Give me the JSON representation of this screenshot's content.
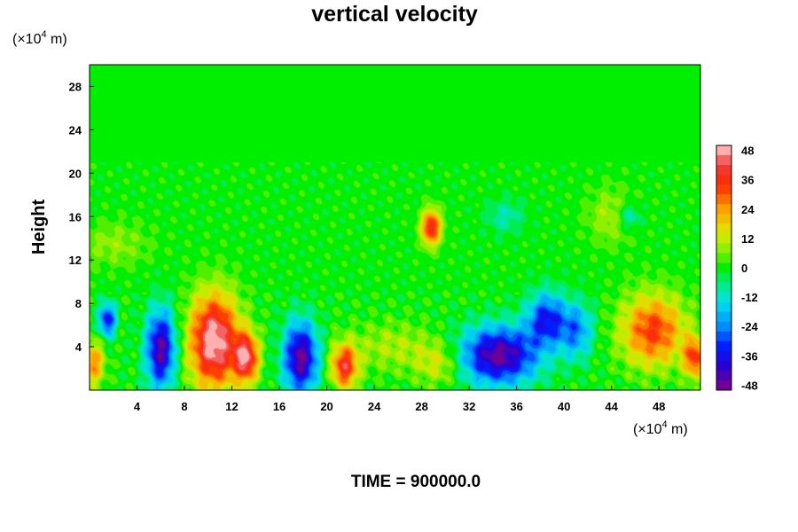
{
  "chart_data": {
    "type": "heatmap",
    "title": "vertical velocity",
    "ylabel": "Height",
    "x_unit_prefix": "(×10",
    "x_unit_exp": "4",
    "x_unit_suffix": " m)",
    "y_unit_prefix": "(×10",
    "y_unit_exp": "4",
    "y_unit_suffix": " m)",
    "xlim": [
      0,
      51.5
    ],
    "ylim": [
      0,
      30
    ],
    "x_ticks": [
      4,
      8,
      12,
      16,
      20,
      24,
      28,
      32,
      36,
      40,
      44,
      48
    ],
    "y_ticks": [
      4,
      8,
      12,
      16,
      20,
      24,
      28
    ],
    "colorbar": {
      "min": -48,
      "max": 48,
      "step": 4,
      "tick_labels": [
        48,
        36,
        24,
        12,
        0,
        -12,
        -24,
        -36,
        -48
      ]
    },
    "features": [
      {
        "x": 10.5,
        "y": 4.5,
        "value": 52,
        "rx": 2.0,
        "ry": 4.2
      },
      {
        "x": 13.2,
        "y": 3.0,
        "value": 44,
        "rx": 1.0,
        "ry": 2.2
      },
      {
        "x": 21.5,
        "y": 2.2,
        "value": 38,
        "rx": 1.1,
        "ry": 2.0
      },
      {
        "x": 47.5,
        "y": 5.5,
        "value": 34,
        "rx": 2.6,
        "ry": 3.2
      },
      {
        "x": 51.0,
        "y": 3.0,
        "value": 34,
        "rx": 0.9,
        "ry": 1.8
      },
      {
        "x": 0.3,
        "y": 2.5,
        "value": 26,
        "rx": 0.9,
        "ry": 2.0
      },
      {
        "x": 28.8,
        "y": 15.0,
        "value": 40,
        "rx": 0.8,
        "ry": 1.6
      },
      {
        "x": 6.0,
        "y": 3.8,
        "value": -46,
        "rx": 1.2,
        "ry": 3.5
      },
      {
        "x": 1.5,
        "y": 6.5,
        "value": -36,
        "rx": 0.7,
        "ry": 1.5
      },
      {
        "x": 17.8,
        "y": 3.0,
        "value": -48,
        "rx": 1.4,
        "ry": 3.2
      },
      {
        "x": 34.5,
        "y": 3.2,
        "value": -48,
        "rx": 3.2,
        "ry": 2.6
      },
      {
        "x": 38.5,
        "y": 6.5,
        "value": -34,
        "rx": 1.6,
        "ry": 2.4
      },
      {
        "x": 41.0,
        "y": 5.5,
        "value": -24,
        "rx": 1.4,
        "ry": 2.5
      },
      {
        "x": 25.5,
        "y": 4.0,
        "value": 10,
        "rx": 3.5,
        "ry": 2.2
      },
      {
        "x": 29.5,
        "y": 2.5,
        "value": 14,
        "rx": 2.0,
        "ry": 2.0
      },
      {
        "x": 44.0,
        "y": 16.0,
        "value": 10,
        "rx": 2.0,
        "ry": 2.5
      },
      {
        "x": 45.5,
        "y": 16.0,
        "value": -14,
        "rx": 1.0,
        "ry": 1.2
      },
      {
        "x": 35.0,
        "y": 16.0,
        "value": -10,
        "rx": 1.5,
        "ry": 1.5
      },
      {
        "x": 2.0,
        "y": 13.5,
        "value": 8,
        "rx": 3.0,
        "ry": 2.0
      }
    ]
  },
  "footer": {
    "time_label": "TIME = 900000.0"
  }
}
